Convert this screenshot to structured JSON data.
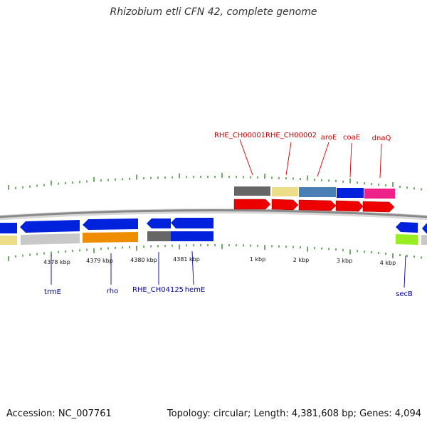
{
  "title": "Rhizobium etli CFN 42, complete genome",
  "accession": "Accession: NC_007761",
  "summary": "Topology: circular; Length: 4,381,608 bp; Genes: 4,094",
  "colors": {
    "forward_label": "#cc0000",
    "reverse_label": "#000099",
    "backbone": "#888888",
    "tick": "#2e8b22"
  },
  "scale_labels": [
    "4378 kbp",
    "4379 kbp",
    "4380 kbp",
    "4381 kbp",
    "1 kbp",
    "2 kbp",
    "3 kbp",
    "4 kbp"
  ],
  "forward_genes": [
    "RHE_CH00001",
    "RHE_CH00002",
    "aroE",
    "coaE",
    "dnaQ"
  ],
  "reverse_genes": [
    "trmE",
    "rho",
    "RHE_CH04125",
    "hemE",
    "secB"
  ]
}
